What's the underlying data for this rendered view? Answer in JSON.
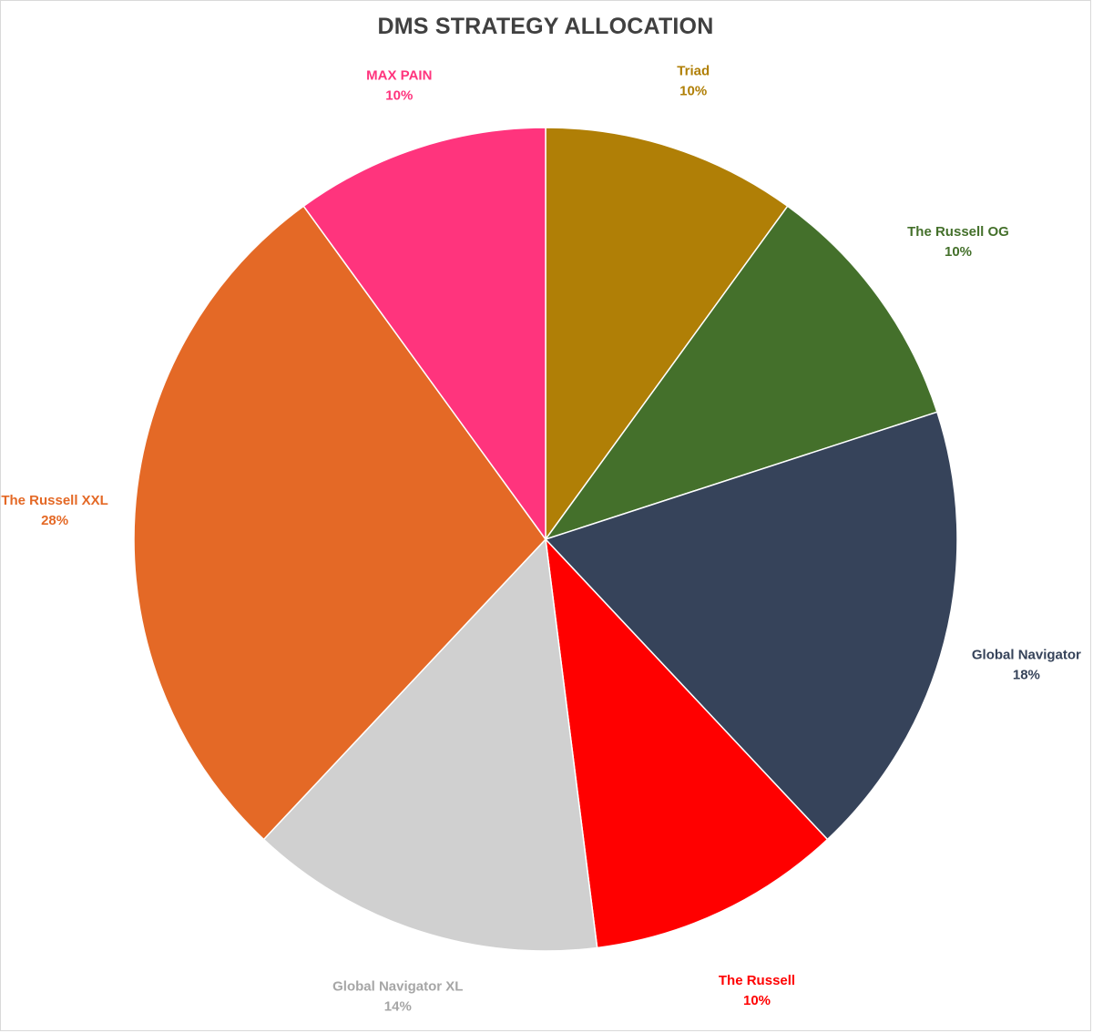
{
  "chart_data": {
    "type": "pie",
    "title": "DMS STRATEGY ALLOCATION",
    "start_angle_deg": 0,
    "direction": "clockwise",
    "slices": [
      {
        "name": "Triad",
        "value": 10,
        "label": "10%",
        "color": "#b07f06",
        "label_color": "#b07f06"
      },
      {
        "name": "The Russell OG",
        "value": 10,
        "label": "10%",
        "color": "#44702b",
        "label_color": "#44702b"
      },
      {
        "name": "Global Navigator",
        "value": 18,
        "label": "18%",
        "color": "#36435a",
        "label_color": "#36435a"
      },
      {
        "name": "The Russell",
        "value": 10,
        "label": "10%",
        "color": "#ff0000",
        "label_color": "#ff0000"
      },
      {
        "name": "Global Navigator XL",
        "value": 14,
        "label": "14%",
        "color": "#d0d0d0",
        "label_color": "#a6a6a6"
      },
      {
        "name": "The Russell XXL",
        "value": 28,
        "label": "28%",
        "color": "#e46926",
        "label_color": "#e46926"
      },
      {
        "name": "MAX PAIN",
        "value": 10,
        "label": "10%",
        "color": "#ff347d",
        "label_color": "#ff347d"
      }
    ]
  }
}
